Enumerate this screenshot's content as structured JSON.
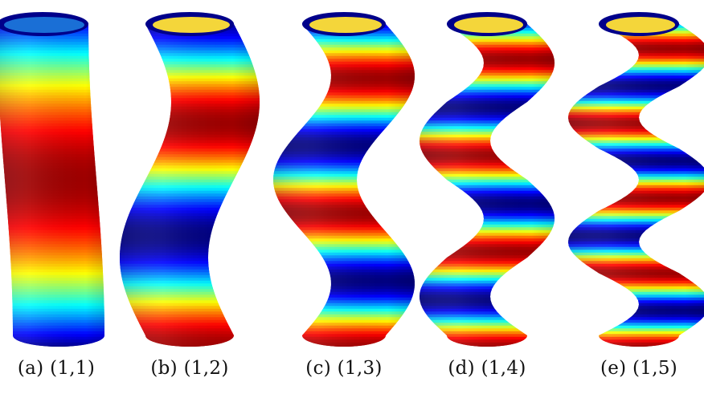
{
  "figure": {
    "colormap": "jet",
    "panels": [
      {
        "label": "(a)",
        "mode": "(1,1)",
        "sway_periods": 0.5,
        "band_freq": 0.5
      },
      {
        "label": "(b)",
        "mode": "(1,2)",
        "sway_periods": 1.0,
        "band_freq": 1.5
      },
      {
        "label": "(c)",
        "mode": "(1,3)",
        "sway_periods": 1.5,
        "band_freq": 2.5
      },
      {
        "label": "(d)",
        "mode": "(1,4)",
        "sway_periods": 2.0,
        "band_freq": 3.5
      },
      {
        "label": "(e)",
        "mode": "(1,5)",
        "sway_periods": 2.5,
        "band_freq": 4.5
      }
    ]
  }
}
